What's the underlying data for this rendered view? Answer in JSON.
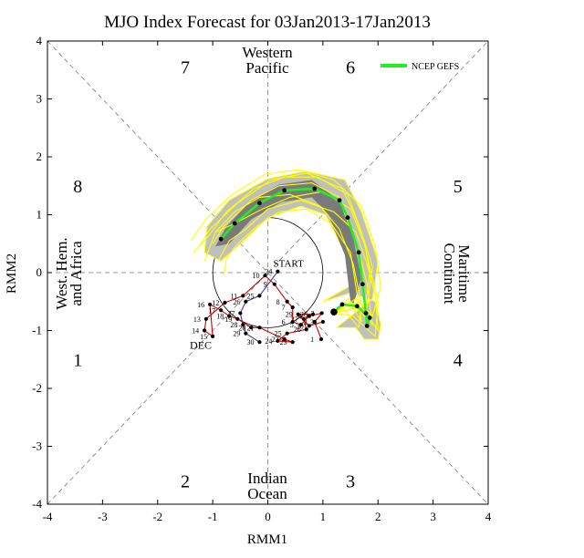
{
  "chart_data": {
    "type": "scatter",
    "title": "MJO Index Forecast for 03Jan2013-17Jan2013",
    "xlabel": "RMM1",
    "ylabel": "RMM2",
    "xlim": [
      -4,
      4
    ],
    "ylim": [
      -4,
      4
    ],
    "xticks": [
      "-4",
      "-3",
      "-2",
      "-1",
      "0",
      "1",
      "2",
      "3",
      "4"
    ],
    "yticks": [
      "-4",
      "-3",
      "-2",
      "-1",
      "0",
      "1",
      "2",
      "3",
      "4"
    ],
    "unit_circle_radius": 1,
    "phase_numbers": [
      {
        "label": "1",
        "x": -3.45,
        "y": -1.5
      },
      {
        "label": "2",
        "x": -1.5,
        "y": -3.6
      },
      {
        "label": "3",
        "x": 1.5,
        "y": -3.6
      },
      {
        "label": "4",
        "x": 3.45,
        "y": -1.5
      },
      {
        "label": "5",
        "x": 3.45,
        "y": 1.5
      },
      {
        "label": "6",
        "x": 1.5,
        "y": 3.55
      },
      {
        "label": "7",
        "x": -1.5,
        "y": 3.55
      },
      {
        "label": "8",
        "x": -3.45,
        "y": 1.5
      }
    ],
    "regions": {
      "top": [
        "Western",
        "Pacific"
      ],
      "bottom": [
        "Indian",
        "Ocean"
      ],
      "left": [
        "West. Hem.",
        "and Africa"
      ],
      "right": [
        "Maritime",
        "Continent"
      ]
    },
    "legend": {
      "label": "NCEP GEFS",
      "color": "#22ee22",
      "placement": "top-right"
    },
    "start_label": "START",
    "dec_label": "DEC",
    "colors": {
      "december": "#cc0000",
      "november": "#4a2fa0",
      "start": "#6a1b9a",
      "ensemble": "#ffff00",
      "spread_outer": "#bfbfbf",
      "spread_inner": "#7a7a7a",
      "mean": "#22ee22"
    },
    "november_path": {
      "labels": [
        "24",
        "25",
        "26",
        "27",
        "28",
        "29",
        "30"
      ],
      "points": [
        [
          0.18,
          0.02
        ],
        [
          -0.15,
          -0.4
        ],
        [
          -0.4,
          -0.5
        ],
        [
          -0.5,
          -0.7
        ],
        [
          -0.45,
          -0.9
        ],
        [
          -0.4,
          -1.05
        ],
        [
          -0.15,
          -1.2
        ]
      ]
    },
    "december_path": {
      "labels": [
        "1",
        "2",
        "3",
        "4",
        "5",
        "6",
        "7",
        "8",
        "9",
        "10",
        "11",
        "12",
        "13",
        "14",
        "15",
        "16",
        "17",
        "18",
        "19",
        "20",
        "21",
        "22",
        "23",
        "24",
        "25",
        "26",
        "27",
        "28",
        "29",
        "30",
        "31"
      ],
      "points": [
        [
          0.97,
          -1.15
        ],
        [
          0.85,
          -0.85
        ],
        [
          0.98,
          -0.7
        ],
        [
          0.75,
          -0.75
        ],
        [
          0.6,
          -0.9
        ],
        [
          0.45,
          -0.85
        ],
        [
          0.45,
          -0.6
        ],
        [
          0.35,
          -0.5
        ],
        [
          0.12,
          -0.2
        ],
        [
          -0.05,
          -0.05
        ],
        [
          -0.45,
          -0.4
        ],
        [
          -0.78,
          -0.52
        ],
        [
          -1.12,
          -0.8
        ],
        [
          -1.15,
          -1.0
        ],
        [
          -1.0,
          -1.1
        ],
        [
          -1.05,
          -0.55
        ],
        [
          -0.85,
          -0.65
        ],
        [
          -0.7,
          -0.75
        ],
        [
          -0.55,
          -0.8
        ],
        [
          -0.3,
          -0.95
        ],
        [
          -0.15,
          -0.95
        ],
        [
          0.3,
          -1.15
        ],
        [
          0.45,
          -1.2
        ],
        [
          0.18,
          -1.18
        ],
        [
          0.35,
          -1.05
        ],
        [
          0.7,
          -0.98
        ],
        [
          0.65,
          -0.8
        ],
        [
          0.82,
          -0.72
        ],
        [
          0.55,
          -0.72
        ],
        [
          0.75,
          -0.92
        ],
        [
          1.0,
          -0.85
        ]
      ]
    },
    "ensemble_mean": {
      "points": [
        [
          1.2,
          -0.68
        ],
        [
          1.35,
          -0.55
        ],
        [
          1.62,
          -0.58
        ],
        [
          1.85,
          -0.78
        ],
        [
          1.8,
          -0.92
        ],
        [
          1.78,
          -0.7
        ],
        [
          1.72,
          -0.2
        ],
        [
          1.65,
          0.35
        ],
        [
          1.45,
          0.95
        ],
        [
          1.3,
          1.25
        ],
        [
          0.85,
          1.45
        ],
        [
          0.3,
          1.42
        ],
        [
          -0.15,
          1.2
        ],
        [
          -0.6,
          0.85
        ],
        [
          -0.85,
          0.58
        ]
      ]
    },
    "spread_outer_band": [
      [
        1.0,
        -0.5
      ],
      [
        1.5,
        -0.35
      ],
      [
        1.95,
        -0.5
      ],
      [
        2.05,
        -0.9
      ],
      [
        2.0,
        -1.15
      ],
      [
        1.75,
        -1.15
      ],
      [
        1.6,
        -0.95
      ],
      [
        1.25,
        -0.95
      ],
      [
        1.9,
        -0.45
      ],
      [
        2.0,
        0.2
      ],
      [
        1.7,
        1.05
      ],
      [
        1.4,
        1.6
      ],
      [
        0.7,
        1.75
      ],
      [
        0.0,
        1.62
      ],
      [
        -0.7,
        1.25
      ],
      [
        -1.1,
        0.8
      ],
      [
        -1.15,
        0.35
      ],
      [
        -0.85,
        0.2
      ],
      [
        -0.5,
        0.5
      ],
      [
        0.0,
        0.95
      ],
      [
        0.6,
        1.15
      ],
      [
        1.05,
        1.0
      ],
      [
        1.4,
        0.35
      ],
      [
        1.55,
        -0.2
      ]
    ],
    "spread_inner_band": [
      [
        1.55,
        -0.55
      ],
      [
        1.7,
        -0.1
      ],
      [
        1.55,
        0.6
      ],
      [
        1.35,
        1.2
      ],
      [
        0.8,
        1.6
      ],
      [
        0.2,
        1.52
      ],
      [
        -0.3,
        1.25
      ],
      [
        -0.75,
        0.8
      ],
      [
        -0.95,
        0.45
      ],
      [
        -0.7,
        0.5
      ],
      [
        -0.3,
        0.92
      ],
      [
        0.25,
        1.22
      ],
      [
        0.8,
        1.3
      ],
      [
        1.1,
        1.0
      ],
      [
        1.4,
        0.3
      ],
      [
        1.5,
        -0.5
      ]
    ],
    "ensemble_members": [
      [
        [
          1.2,
          -0.7
        ],
        [
          1.6,
          -0.6
        ],
        [
          1.9,
          -0.9
        ],
        [
          1.8,
          -0.2
        ],
        [
          1.65,
          0.4
        ],
        [
          1.4,
          1.0
        ],
        [
          1.3,
          1.3
        ],
        [
          0.8,
          1.55
        ],
        [
          0.2,
          1.5
        ],
        [
          -0.3,
          1.25
        ],
        [
          -0.8,
          0.8
        ],
        [
          -1.0,
          0.5
        ]
      ],
      [
        [
          1.2,
          -0.7
        ],
        [
          1.5,
          -0.5
        ],
        [
          1.75,
          -0.7
        ],
        [
          1.85,
          0.0
        ],
        [
          1.75,
          0.55
        ],
        [
          1.55,
          1.05
        ],
        [
          1.35,
          1.45
        ],
        [
          0.7,
          1.72
        ],
        [
          0.05,
          1.6
        ],
        [
          -0.55,
          1.2
        ],
        [
          -1.05,
          0.75
        ],
        [
          -1.25,
          0.45
        ]
      ],
      [
        [
          1.2,
          -0.7
        ],
        [
          1.7,
          -0.6
        ],
        [
          2.0,
          -1.0
        ],
        [
          1.95,
          -0.4
        ],
        [
          1.8,
          0.15
        ],
        [
          1.6,
          0.7
        ],
        [
          1.2,
          1.05
        ],
        [
          0.6,
          1.25
        ],
        [
          0.0,
          1.1
        ],
        [
          -0.4,
          0.75
        ],
        [
          -0.7,
          0.55
        ],
        [
          -0.9,
          0.2
        ]
      ],
      [
        [
          1.2,
          -0.7
        ],
        [
          1.45,
          -0.45
        ],
        [
          1.7,
          -0.85
        ],
        [
          1.6,
          -0.25
        ],
        [
          1.5,
          0.35
        ],
        [
          1.15,
          0.85
        ],
        [
          0.7,
          1.1
        ],
        [
          0.2,
          1.05
        ],
        [
          -0.2,
          0.8
        ],
        [
          -0.55,
          0.5
        ],
        [
          -0.75,
          0.25
        ],
        [
          -0.8,
          -0.05
        ]
      ],
      [
        [
          1.2,
          -0.7
        ],
        [
          1.65,
          -0.5
        ],
        [
          1.8,
          -0.6
        ],
        [
          1.9,
          0.1
        ],
        [
          1.7,
          0.7
        ],
        [
          1.45,
          1.35
        ],
        [
          0.9,
          1.65
        ],
        [
          0.3,
          1.65
        ],
        [
          -0.25,
          1.45
        ],
        [
          -0.75,
          1.05
        ],
        [
          -1.1,
          0.6
        ],
        [
          -1.35,
          0.35
        ]
      ],
      [
        [
          1.2,
          -0.7
        ],
        [
          1.55,
          -0.75
        ],
        [
          1.95,
          -1.1
        ],
        [
          2.0,
          -0.5
        ],
        [
          1.9,
          -0.1
        ],
        [
          1.75,
          0.5
        ],
        [
          1.5,
          1.1
        ],
        [
          1.0,
          1.4
        ],
        [
          0.4,
          1.3
        ],
        [
          -0.1,
          1.1
        ],
        [
          -0.6,
          0.85
        ],
        [
          -0.95,
          0.7
        ]
      ],
      [
        [
          1.2,
          -0.7
        ],
        [
          1.35,
          -0.6
        ],
        [
          1.65,
          -0.95
        ],
        [
          1.7,
          -0.55
        ],
        [
          1.55,
          0.15
        ],
        [
          1.3,
          0.75
        ],
        [
          0.95,
          1.15
        ],
        [
          0.4,
          1.35
        ],
        [
          -0.15,
          1.3
        ],
        [
          -0.6,
          1.05
        ],
        [
          -0.95,
          0.7
        ],
        [
          -1.15,
          0.2
        ]
      ],
      [
        [
          1.2,
          -0.7
        ],
        [
          1.6,
          -0.45
        ],
        [
          1.9,
          -0.75
        ],
        [
          2.05,
          -0.25
        ],
        [
          1.95,
          0.45
        ],
        [
          1.7,
          1.15
        ],
        [
          1.2,
          1.6
        ],
        [
          0.55,
          1.78
        ],
        [
          -0.05,
          1.7
        ],
        [
          -0.65,
          1.35
        ],
        [
          -1.1,
          0.95
        ],
        [
          -1.4,
          0.55
        ]
      ]
    ]
  }
}
